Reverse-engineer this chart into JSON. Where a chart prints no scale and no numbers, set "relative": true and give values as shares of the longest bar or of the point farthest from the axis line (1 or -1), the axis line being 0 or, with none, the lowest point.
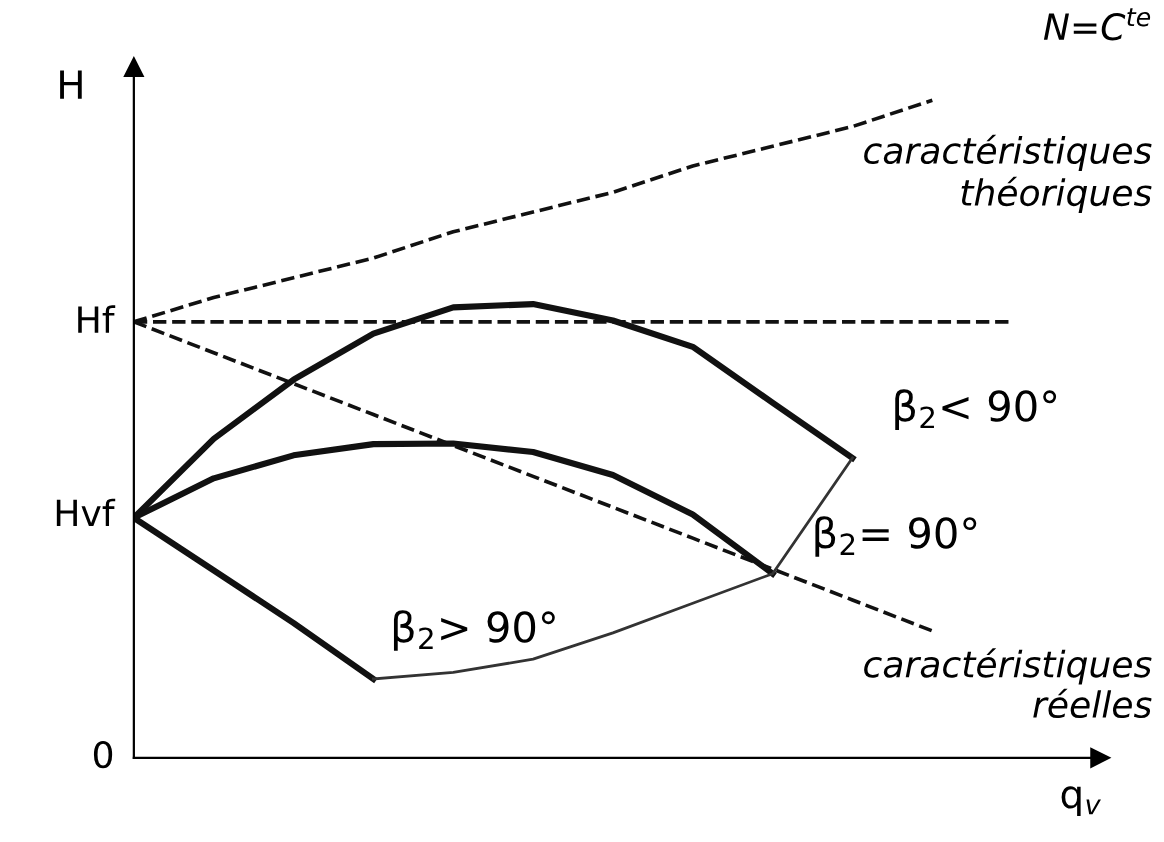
{
  "chart_data": {
    "type": "line",
    "relative": true,
    "xlabel": "q$_{v}$",
    "ylabel": "H",
    "categories": [
      null,
      null,
      null,
      null,
      null,
      null,
      null,
      null,
      null,
      null,
      null,
      null
    ],
    "series": [
      {
        "color": "#111111",
        "line_style": "dashed",
        "values": [
          0.663,
          0.7,
          0.73,
          0.76,
          0.8,
          0.83,
          0.86,
          0.9,
          0.93,
          0.96,
          1.0,
          null
        ]
      },
      {
        "color": "#111111",
        "line_style": "dashed",
        "values": [
          0.663,
          0.663,
          0.663,
          0.663,
          0.663,
          0.663,
          0.663,
          0.663,
          0.663,
          0.663,
          0.663,
          0.663
        ]
      },
      {
        "color": "#111111",
        "line_style": "dashed",
        "values": [
          0.663,
          0.616,
          0.569,
          0.522,
          0.475,
          0.428,
          0.381,
          0.334,
          0.287,
          0.24,
          0.193,
          null
        ]
      },
      {
        "name": "β$_{2}$< 90°",
        "color": "#111111",
        "values": [
          0.365,
          0.485,
          0.575,
          0.645,
          0.685,
          0.69,
          0.665,
          0.625,
          0.54,
          0.456,
          null,
          null
        ]
      },
      {
        "name": "β$_{2}$= 90°",
        "color": "#111111",
        "values": [
          0.365,
          0.425,
          0.46,
          0.477,
          0.478,
          0.465,
          0.43,
          0.37,
          0.28,
          null,
          null,
          null
        ]
      },
      {
        "name": "β$_{2}$> 90°",
        "color": "#111111",
        "values": [
          0.365,
          0.285,
          0.205,
          0.12,
          null,
          null,
          null,
          null,
          null,
          null,
          null,
          null
        ]
      },
      {
        "color": "#333333",
        "values": [
          null,
          null,
          null,
          0.12,
          0.13,
          0.15,
          0.19,
          0.235,
          0.28,
          0.456,
          null,
          null
        ]
      }
    ],
    "annotations": [
      "Hf",
      "Hvf",
      "0",
      "N=C$^{te}$",
      "caractéristiques\nthéoriques",
      "caractéristiques\nréelles"
    ]
  }
}
